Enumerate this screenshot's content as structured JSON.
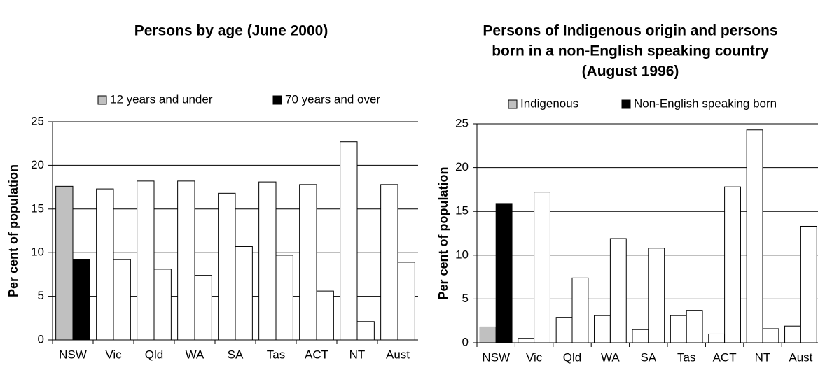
{
  "chart_data": [
    {
      "type": "bar",
      "title": [
        "Persons by age (June 2000)"
      ],
      "ylabel": "Per cent of population",
      "categories": [
        "NSW",
        "Vic",
        "Qld",
        "WA",
        "SA",
        "Tas",
        "ACT",
        "NT",
        "Aust"
      ],
      "series": [
        {
          "name": "12 years and under",
          "color": "#c0c0c0",
          "point_colors": [
            "#c0c0c0",
            "#ffffff",
            "#ffffff",
            "#ffffff",
            "#ffffff",
            "#ffffff",
            "#ffffff",
            "#ffffff",
            "#ffffff"
          ],
          "values": [
            17.6,
            17.3,
            18.2,
            18.2,
            16.8,
            18.1,
            17.8,
            22.7,
            17.8
          ]
        },
        {
          "name": "70 years and over",
          "color": "#000000",
          "point_colors": [
            "#000000",
            "#ffffff",
            "#ffffff",
            "#ffffff",
            "#ffffff",
            "#ffffff",
            "#ffffff",
            "#ffffff",
            "#ffffff"
          ],
          "values": [
            9.2,
            9.2,
            8.1,
            7.4,
            10.7,
            9.7,
            5.6,
            2.1,
            8.9
          ]
        }
      ],
      "ylim": [
        0,
        25
      ],
      "yticks": [
        0,
        5,
        10,
        15,
        20,
        25
      ],
      "grid": true
    },
    {
      "type": "bar",
      "title": [
        "Persons of Indigenous origin and persons",
        "born in a non-English speaking country",
        "(August 1996)"
      ],
      "ylabel": "Per cent of population",
      "categories": [
        "NSW",
        "Vic",
        "Qld",
        "WA",
        "SA",
        "Tas",
        "ACT",
        "NT",
        "Aust"
      ],
      "series": [
        {
          "name": "Indigenous",
          "color": "#c0c0c0",
          "point_colors": [
            "#c0c0c0",
            "#ffffff",
            "#ffffff",
            "#ffffff",
            "#ffffff",
            "#ffffff",
            "#ffffff",
            "#ffffff",
            "#ffffff"
          ],
          "values": [
            1.8,
            0.5,
            2.9,
            3.1,
            1.5,
            3.1,
            1.0,
            24.3,
            1.9
          ]
        },
        {
          "name": "Non-English speaking born",
          "color": "#000000",
          "point_colors": [
            "#000000",
            "#ffffff",
            "#ffffff",
            "#ffffff",
            "#ffffff",
            "#ffffff",
            "#ffffff",
            "#ffffff",
            "#ffffff"
          ],
          "values": [
            15.9,
            17.2,
            7.4,
            11.9,
            10.8,
            3.7,
            17.8,
            1.6,
            13.3
          ]
        }
      ],
      "ylim": [
        0,
        25
      ],
      "yticks": [
        0,
        5,
        10,
        15,
        20,
        25
      ],
      "grid": true
    }
  ]
}
